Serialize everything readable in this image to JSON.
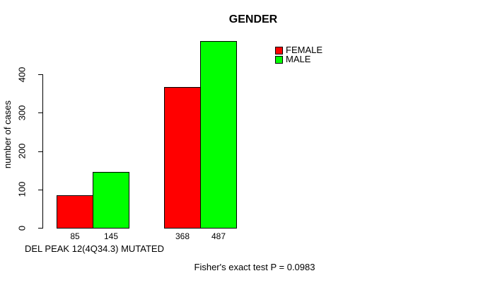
{
  "chart_data": {
    "type": "bar",
    "title": "GENDER",
    "ylabel": "number of cases",
    "xlabel": "DEL PEAK 12(4Q34.3) MUTATED",
    "annotation": "Fisher's exact test P = 0.0983",
    "yticks": [
      0,
      100,
      200,
      300,
      400
    ],
    "ylim": [
      0,
      490
    ],
    "grid": false,
    "legend_position": "top-right",
    "series": [
      {
        "name": "FEMALE",
        "color": "#ff0000",
        "values": [
          85,
          368
        ]
      },
      {
        "name": "MALE",
        "color": "#00ff00",
        "values": [
          145,
          487
        ]
      }
    ],
    "bar_value_labels": [
      [
        "85",
        "368"
      ],
      [
        "145",
        "487"
      ]
    ]
  },
  "colors": {
    "background": "#ffffff",
    "axis": "#000000",
    "text": "#000000"
  }
}
